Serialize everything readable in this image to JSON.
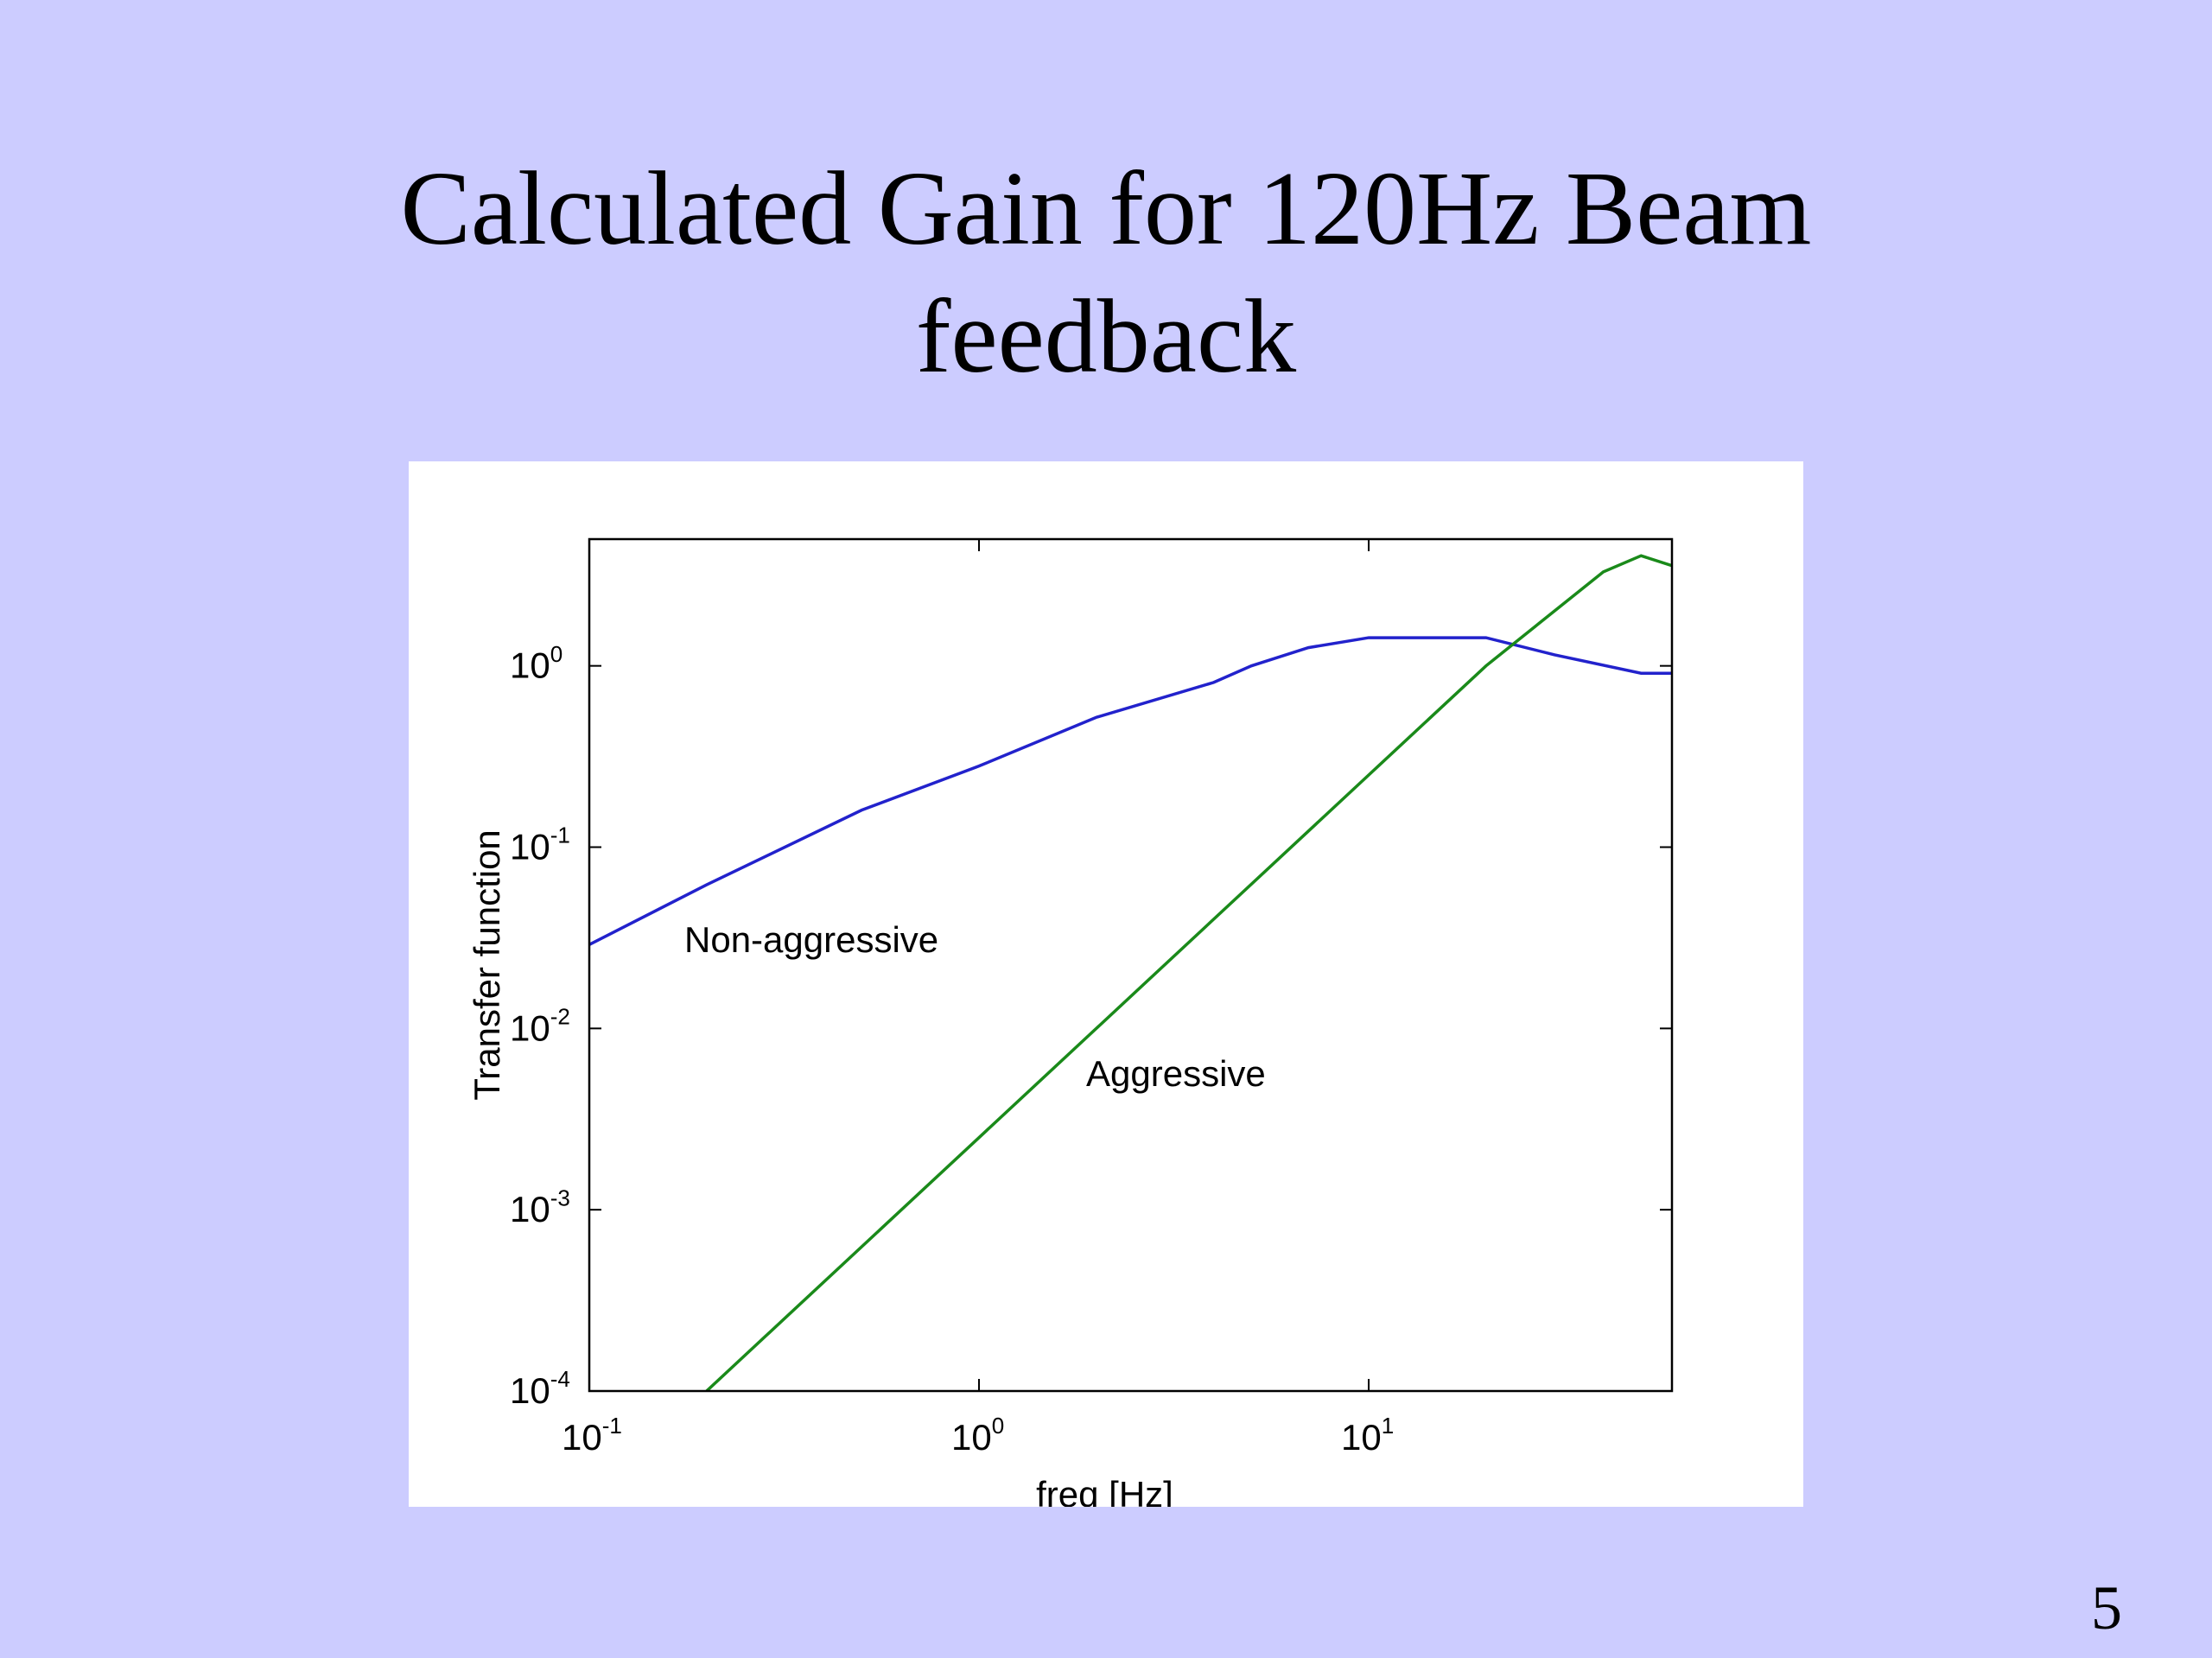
{
  "title": "Calculated Gain for 120Hz Beam feedback",
  "slide_number": "5",
  "chart_data": {
    "type": "line",
    "xlabel": "freq [Hz]",
    "ylabel": "Transfer function",
    "xscale": "log",
    "yscale": "log",
    "xlim": [
      0.1,
      60
    ],
    "ylim": [
      0.0001,
      5
    ],
    "xticks": [
      {
        "value": 0.1,
        "label": "10",
        "exponent": "-1"
      },
      {
        "value": 1,
        "label": "10",
        "exponent": "0"
      },
      {
        "value": 10,
        "label": "10",
        "exponent": "1"
      }
    ],
    "yticks": [
      {
        "value": 0.0001,
        "label": "10",
        "exponent": "-4"
      },
      {
        "value": 0.001,
        "label": "10",
        "exponent": "-3"
      },
      {
        "value": 0.01,
        "label": "10",
        "exponent": "-2"
      },
      {
        "value": 0.1,
        "label": "10",
        "exponent": "-1"
      },
      {
        "value": 1,
        "label": "10",
        "exponent": "0"
      }
    ],
    "series": [
      {
        "name": "Non-aggressive",
        "color": "#2222cc",
        "x": [
          0.1,
          0.2,
          0.5,
          1,
          2,
          4,
          5,
          7,
          10,
          20,
          30,
          50,
          60
        ],
        "values": [
          0.029,
          0.062,
          0.16,
          0.28,
          0.52,
          0.81,
          1.0,
          1.26,
          1.43,
          1.43,
          1.15,
          0.91,
          0.91
        ]
      },
      {
        "name": "Aggressive",
        "color": "#1a8a1a",
        "x": [
          0.2,
          1,
          10,
          20,
          40,
          50,
          60
        ],
        "values": [
          0.0001,
          0.0025,
          0.25,
          1.0,
          3.3,
          4.05,
          3.57
        ]
      }
    ]
  }
}
